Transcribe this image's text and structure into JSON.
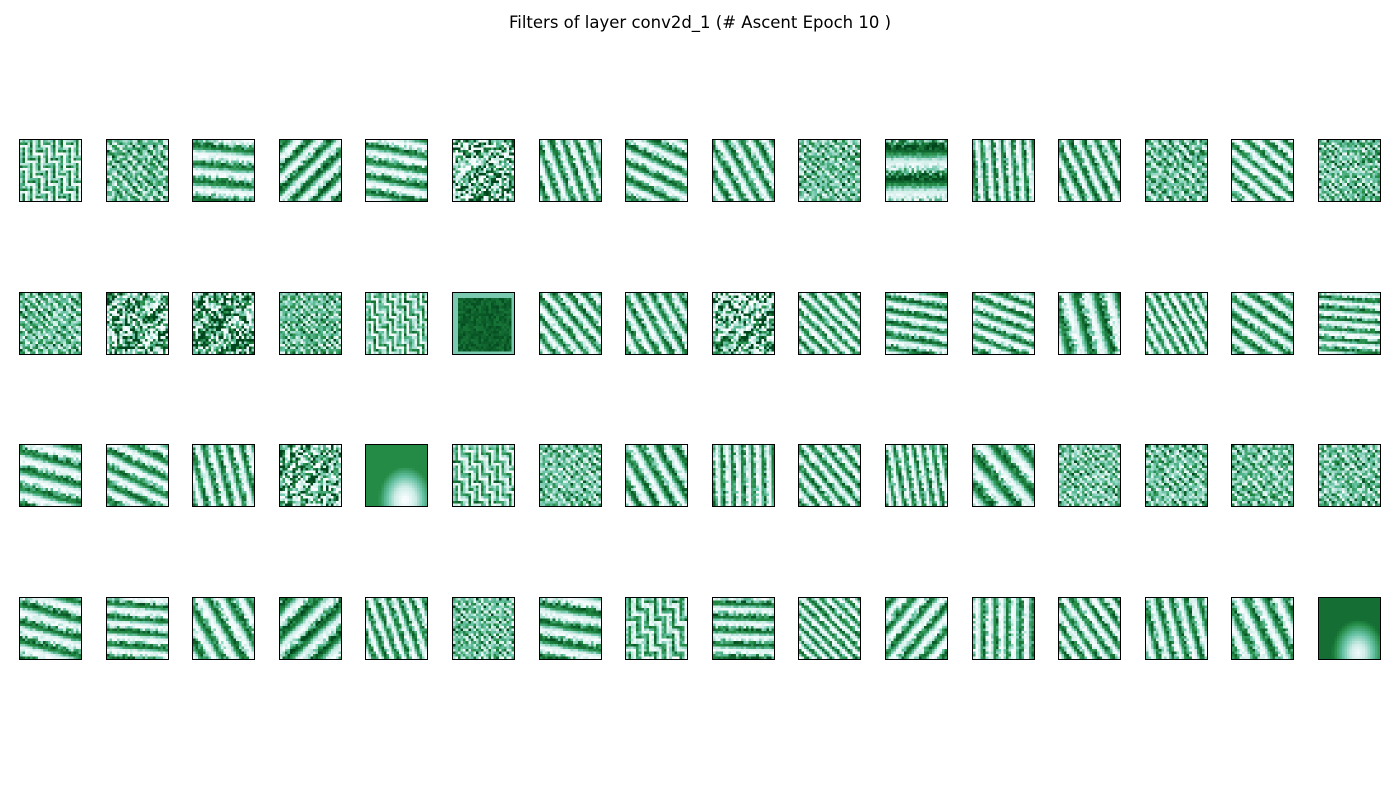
{
  "figure": {
    "title": "Filters of layer conv2d_1 (# Ascent Epoch 10 )"
  },
  "colors": {
    "colormap": [
      "#f7fcfd",
      "#ccece6",
      "#66c2a4",
      "#238b45",
      "#00441b"
    ]
  },
  "filters": {
    "layout": {
      "rows": 4,
      "columns": 16,
      "resolution": 24
    },
    "items": [
      {
        "pattern": "maze",
        "angle": 0,
        "freq": 4,
        "base": 0.55
      },
      {
        "pattern": "checker",
        "angle": 0,
        "freq": 6,
        "base": 0.5
      },
      {
        "pattern": "stripes",
        "angle": 95,
        "freq": 3.5,
        "base": 0.5
      },
      {
        "pattern": "stripes",
        "angle": 45,
        "freq": 4,
        "base": 0.6
      },
      {
        "pattern": "stripes",
        "angle": 100,
        "freq": 4,
        "base": 0.5
      },
      {
        "pattern": "noise",
        "angle": 0,
        "freq": 5,
        "base": 0.45
      },
      {
        "pattern": "stripes",
        "angle": 160,
        "freq": 5,
        "base": 0.5
      },
      {
        "pattern": "stripes",
        "angle": 115,
        "freq": 4,
        "base": 0.5
      },
      {
        "pattern": "stripes",
        "angle": 150,
        "freq": 4.5,
        "base": 0.5
      },
      {
        "pattern": "checker",
        "angle": 0,
        "freq": 7,
        "base": 0.45
      },
      {
        "pattern": "stripes",
        "angle": 90,
        "freq": 2,
        "base": 0.75
      },
      {
        "pattern": "stripes",
        "angle": 175,
        "freq": 6,
        "base": 0.5
      },
      {
        "pattern": "stripes",
        "angle": 155,
        "freq": 5,
        "base": 0.55
      },
      {
        "pattern": "checker",
        "angle": 0,
        "freq": 5.5,
        "base": 0.5
      },
      {
        "pattern": "stripes",
        "angle": 130,
        "freq": 5,
        "base": 0.45
      },
      {
        "pattern": "checker",
        "angle": 0,
        "freq": 8,
        "base": 0.55
      },
      {
        "pattern": "checker",
        "angle": 0,
        "freq": 6.5,
        "base": 0.45
      },
      {
        "pattern": "noise",
        "angle": 0,
        "freq": 4,
        "base": 0.5
      },
      {
        "pattern": "noise",
        "angle": 0,
        "freq": 3,
        "base": 0.6
      },
      {
        "pattern": "checker",
        "angle": 0,
        "freq": 8,
        "base": 0.5
      },
      {
        "pattern": "maze",
        "angle": 0,
        "freq": 5,
        "base": 0.5
      },
      {
        "pattern": "dark",
        "angle": 0,
        "freq": 1,
        "base": 0.9
      },
      {
        "pattern": "stripes",
        "angle": 140,
        "freq": 5,
        "base": 0.5
      },
      {
        "pattern": "stripes",
        "angle": 150,
        "freq": 5,
        "base": 0.5
      },
      {
        "pattern": "noise",
        "angle": 0,
        "freq": 7,
        "base": 0.5
      },
      {
        "pattern": "stripes",
        "angle": 135,
        "freq": 6,
        "base": 0.45
      },
      {
        "pattern": "stripes",
        "angle": 100,
        "freq": 5,
        "base": 0.55
      },
      {
        "pattern": "stripes",
        "angle": 110,
        "freq": 5,
        "base": 0.5
      },
      {
        "pattern": "stripes",
        "angle": 165,
        "freq": 3,
        "base": 0.55
      },
      {
        "pattern": "stripes",
        "angle": 150,
        "freq": 6.5,
        "base": 0.45
      },
      {
        "pattern": "stripes",
        "angle": 125,
        "freq": 4.5,
        "base": 0.5
      },
      {
        "pattern": "stripes",
        "angle": 95,
        "freq": 6,
        "base": 0.5
      },
      {
        "pattern": "stripes",
        "angle": 105,
        "freq": 3.5,
        "base": 0.5
      },
      {
        "pattern": "stripes",
        "angle": 115,
        "freq": 4,
        "base": 0.5
      },
      {
        "pattern": "stripes",
        "angle": 165,
        "freq": 5,
        "base": 0.5
      },
      {
        "pattern": "noise",
        "angle": 0,
        "freq": 6,
        "base": 0.45
      },
      {
        "pattern": "blob",
        "angle": 0,
        "freq": 1,
        "base": 0.75
      },
      {
        "pattern": "maze",
        "angle": 0,
        "freq": 4.5,
        "base": 0.5
      },
      {
        "pattern": "checker",
        "angle": 0,
        "freq": 7,
        "base": 0.45
      },
      {
        "pattern": "stripes",
        "angle": 150,
        "freq": 4,
        "base": 0.55
      },
      {
        "pattern": "stripes",
        "angle": 178,
        "freq": 6,
        "base": 0.5
      },
      {
        "pattern": "stripes",
        "angle": 140,
        "freq": 5.5,
        "base": 0.5
      },
      {
        "pattern": "stripes",
        "angle": 170,
        "freq": 6.5,
        "base": 0.5
      },
      {
        "pattern": "stripes",
        "angle": 140,
        "freq": 3,
        "base": 0.55
      },
      {
        "pattern": "checker",
        "angle": 0,
        "freq": 7.5,
        "base": 0.45
      },
      {
        "pattern": "checker",
        "angle": 0,
        "freq": 6.5,
        "base": 0.45
      },
      {
        "pattern": "checker",
        "angle": 0,
        "freq": 6,
        "base": 0.5
      },
      {
        "pattern": "checker",
        "angle": 0,
        "freq": 7,
        "base": 0.45
      },
      {
        "pattern": "stripes",
        "angle": 105,
        "freq": 3.5,
        "base": 0.55
      },
      {
        "pattern": "stripes",
        "angle": 95,
        "freq": 4.5,
        "base": 0.5
      },
      {
        "pattern": "stripes",
        "angle": 150,
        "freq": 3.5,
        "base": 0.5
      },
      {
        "pattern": "stripes",
        "angle": 45,
        "freq": 3,
        "base": 0.65
      },
      {
        "pattern": "stripes",
        "angle": 160,
        "freq": 5.5,
        "base": 0.5
      },
      {
        "pattern": "checker",
        "angle": 0,
        "freq": 8,
        "base": 0.5
      },
      {
        "pattern": "stripes",
        "angle": 100,
        "freq": 3.5,
        "base": 0.55
      },
      {
        "pattern": "maze",
        "angle": 0,
        "freq": 3.5,
        "base": 0.55
      },
      {
        "pattern": "stripes",
        "angle": 92,
        "freq": 4.5,
        "base": 0.55
      },
      {
        "pattern": "stripes",
        "angle": 135,
        "freq": 7,
        "base": 0.5
      },
      {
        "pattern": "stripes",
        "angle": 40,
        "freq": 4,
        "base": 0.5
      },
      {
        "pattern": "stripes",
        "angle": 180,
        "freq": 5,
        "base": 0.45
      },
      {
        "pattern": "stripes",
        "angle": 145,
        "freq": 5,
        "base": 0.5
      },
      {
        "pattern": "stripes",
        "angle": 165,
        "freq": 4.5,
        "base": 0.5
      },
      {
        "pattern": "stripes",
        "angle": 155,
        "freq": 3.5,
        "base": 0.5
      },
      {
        "pattern": "blob",
        "angle": 0,
        "freq": 1,
        "base": 0.85
      }
    ]
  }
}
